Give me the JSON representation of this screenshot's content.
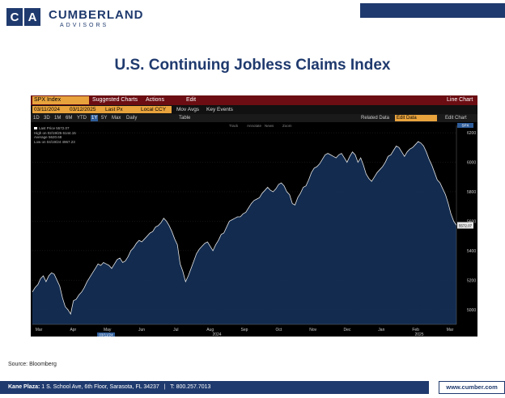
{
  "brand": {
    "letters": [
      "C",
      "A"
    ],
    "name": "CUMBERLAND",
    "sub": "ADVISORS"
  },
  "title": "U.S. Continuing Jobless Claims Index",
  "terminal": {
    "ticker": "SPX Index",
    "menu": [
      "Suggested Charts",
      "Actions",
      "Edit"
    ],
    "chart_mode": "Line Chart",
    "start_date": "03/11/2024",
    "end_date": "03/12/2025",
    "price_field": "Last Px",
    "currency": "Local CCY",
    "mov_avgs": "Mov Avgs",
    "key_events": "Key Events",
    "periods": [
      "1D",
      "3D",
      "1M",
      "6M",
      "YTD",
      "1Y",
      "5Y",
      "Max"
    ],
    "selected_period": "1Y",
    "frequency": "Daily",
    "table": "Table",
    "related": "Related Data",
    "edit_data": "Edit Data",
    "edit_chart": "Edit Chart",
    "tools": [
      "Track",
      "Annotate",
      "News",
      "Zoom"
    ],
    "legend": [
      {
        "label": "Last Price",
        "value": "5572.07"
      },
      {
        "label": "High on 02/19/25",
        "value": "6144.15"
      },
      {
        "label": "Average",
        "value": "5620.68"
      },
      {
        "label": "Low on 04/19/24",
        "value": "4967.23"
      }
    ],
    "last_tag": "5572.07",
    "top_tag": "SPX"
  },
  "chart_data": {
    "type": "line",
    "ylim": [
      4900,
      6250
    ],
    "yticks": [
      5000,
      5200,
      5400,
      5600,
      5800,
      6000,
      6200
    ],
    "xlabels": [
      "Mar",
      "Apr",
      "May",
      "Jun",
      "Jul",
      "Aug",
      "Sep",
      "Oct",
      "Nov",
      "Dec",
      "Jan",
      "Feb",
      "Mar"
    ],
    "year_labels": [
      "2024",
      "2025"
    ],
    "start_label": "03/11/24",
    "values": [
      5120,
      5150,
      5170,
      5210,
      5230,
      5190,
      5230,
      5250,
      5240,
      5200,
      5160,
      5080,
      5020,
      5000,
      4970,
      5060,
      5070,
      5100,
      5120,
      5150,
      5190,
      5220,
      5250,
      5280,
      5310,
      5300,
      5320,
      5310,
      5300,
      5280,
      5310,
      5340,
      5350,
      5320,
      5330,
      5360,
      5400,
      5420,
      5450,
      5470,
      5460,
      5480,
      5500,
      5520,
      5530,
      5560,
      5570,
      5590,
      5620,
      5600,
      5570,
      5530,
      5480,
      5440,
      5310,
      5260,
      5190,
      5230,
      5280,
      5330,
      5380,
      5410,
      5430,
      5450,
      5460,
      5430,
      5400,
      5440,
      5470,
      5510,
      5520,
      5560,
      5600,
      5610,
      5620,
      5630,
      5630,
      5650,
      5660,
      5690,
      5720,
      5740,
      5750,
      5760,
      5790,
      5810,
      5830,
      5810,
      5800,
      5820,
      5850,
      5860,
      5840,
      5800,
      5780,
      5720,
      5710,
      5760,
      5790,
      5830,
      5840,
      5880,
      5930,
      5960,
      5970,
      5990,
      6020,
      6050,
      6060,
      6050,
      6040,
      6030,
      6050,
      6060,
      6030,
      6000,
      6040,
      6070,
      6050,
      6000,
      6030,
      5980,
      5920,
      5890,
      5870,
      5900,
      5930,
      5950,
      5970,
      6000,
      6040,
      6050,
      6080,
      6110,
      6100,
      6070,
      6040,
      6070,
      6090,
      6100,
      6120,
      6140,
      6130,
      6110,
      6070,
      6020,
      5980,
      5930,
      5880,
      5860,
      5820,
      5780,
      5720,
      5650,
      5600,
      5572
    ]
  },
  "source": "Source: Bloomberg",
  "footer": {
    "label": "Kane Plaza:",
    "address": "1 S. School Ave, 6th Floor, Sarasota, FL 34237",
    "sep": "|",
    "phone": "T: 800.257.7013",
    "url": "www.cumber.com"
  }
}
